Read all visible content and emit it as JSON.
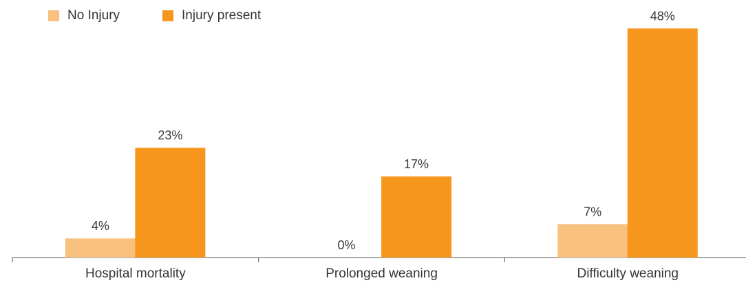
{
  "chart_data": {
    "type": "bar",
    "categories": [
      "Hospital mortality",
      "Prolonged weaning",
      "Difficulty weaning"
    ],
    "series": [
      {
        "name": "No Injury",
        "values": [
          4,
          0,
          7
        ],
        "labels": [
          "4%",
          "0%",
          "7%"
        ],
        "color": "#F9C17E"
      },
      {
        "name": "Injury present",
        "values": [
          23,
          17,
          48
        ],
        "labels": [
          "23%",
          "17%",
          "48%"
        ],
        "color": "#F7961D"
      }
    ],
    "unit": "%",
    "ylim": [
      0,
      50
    ],
    "grid": false,
    "legend": "top-left"
  }
}
